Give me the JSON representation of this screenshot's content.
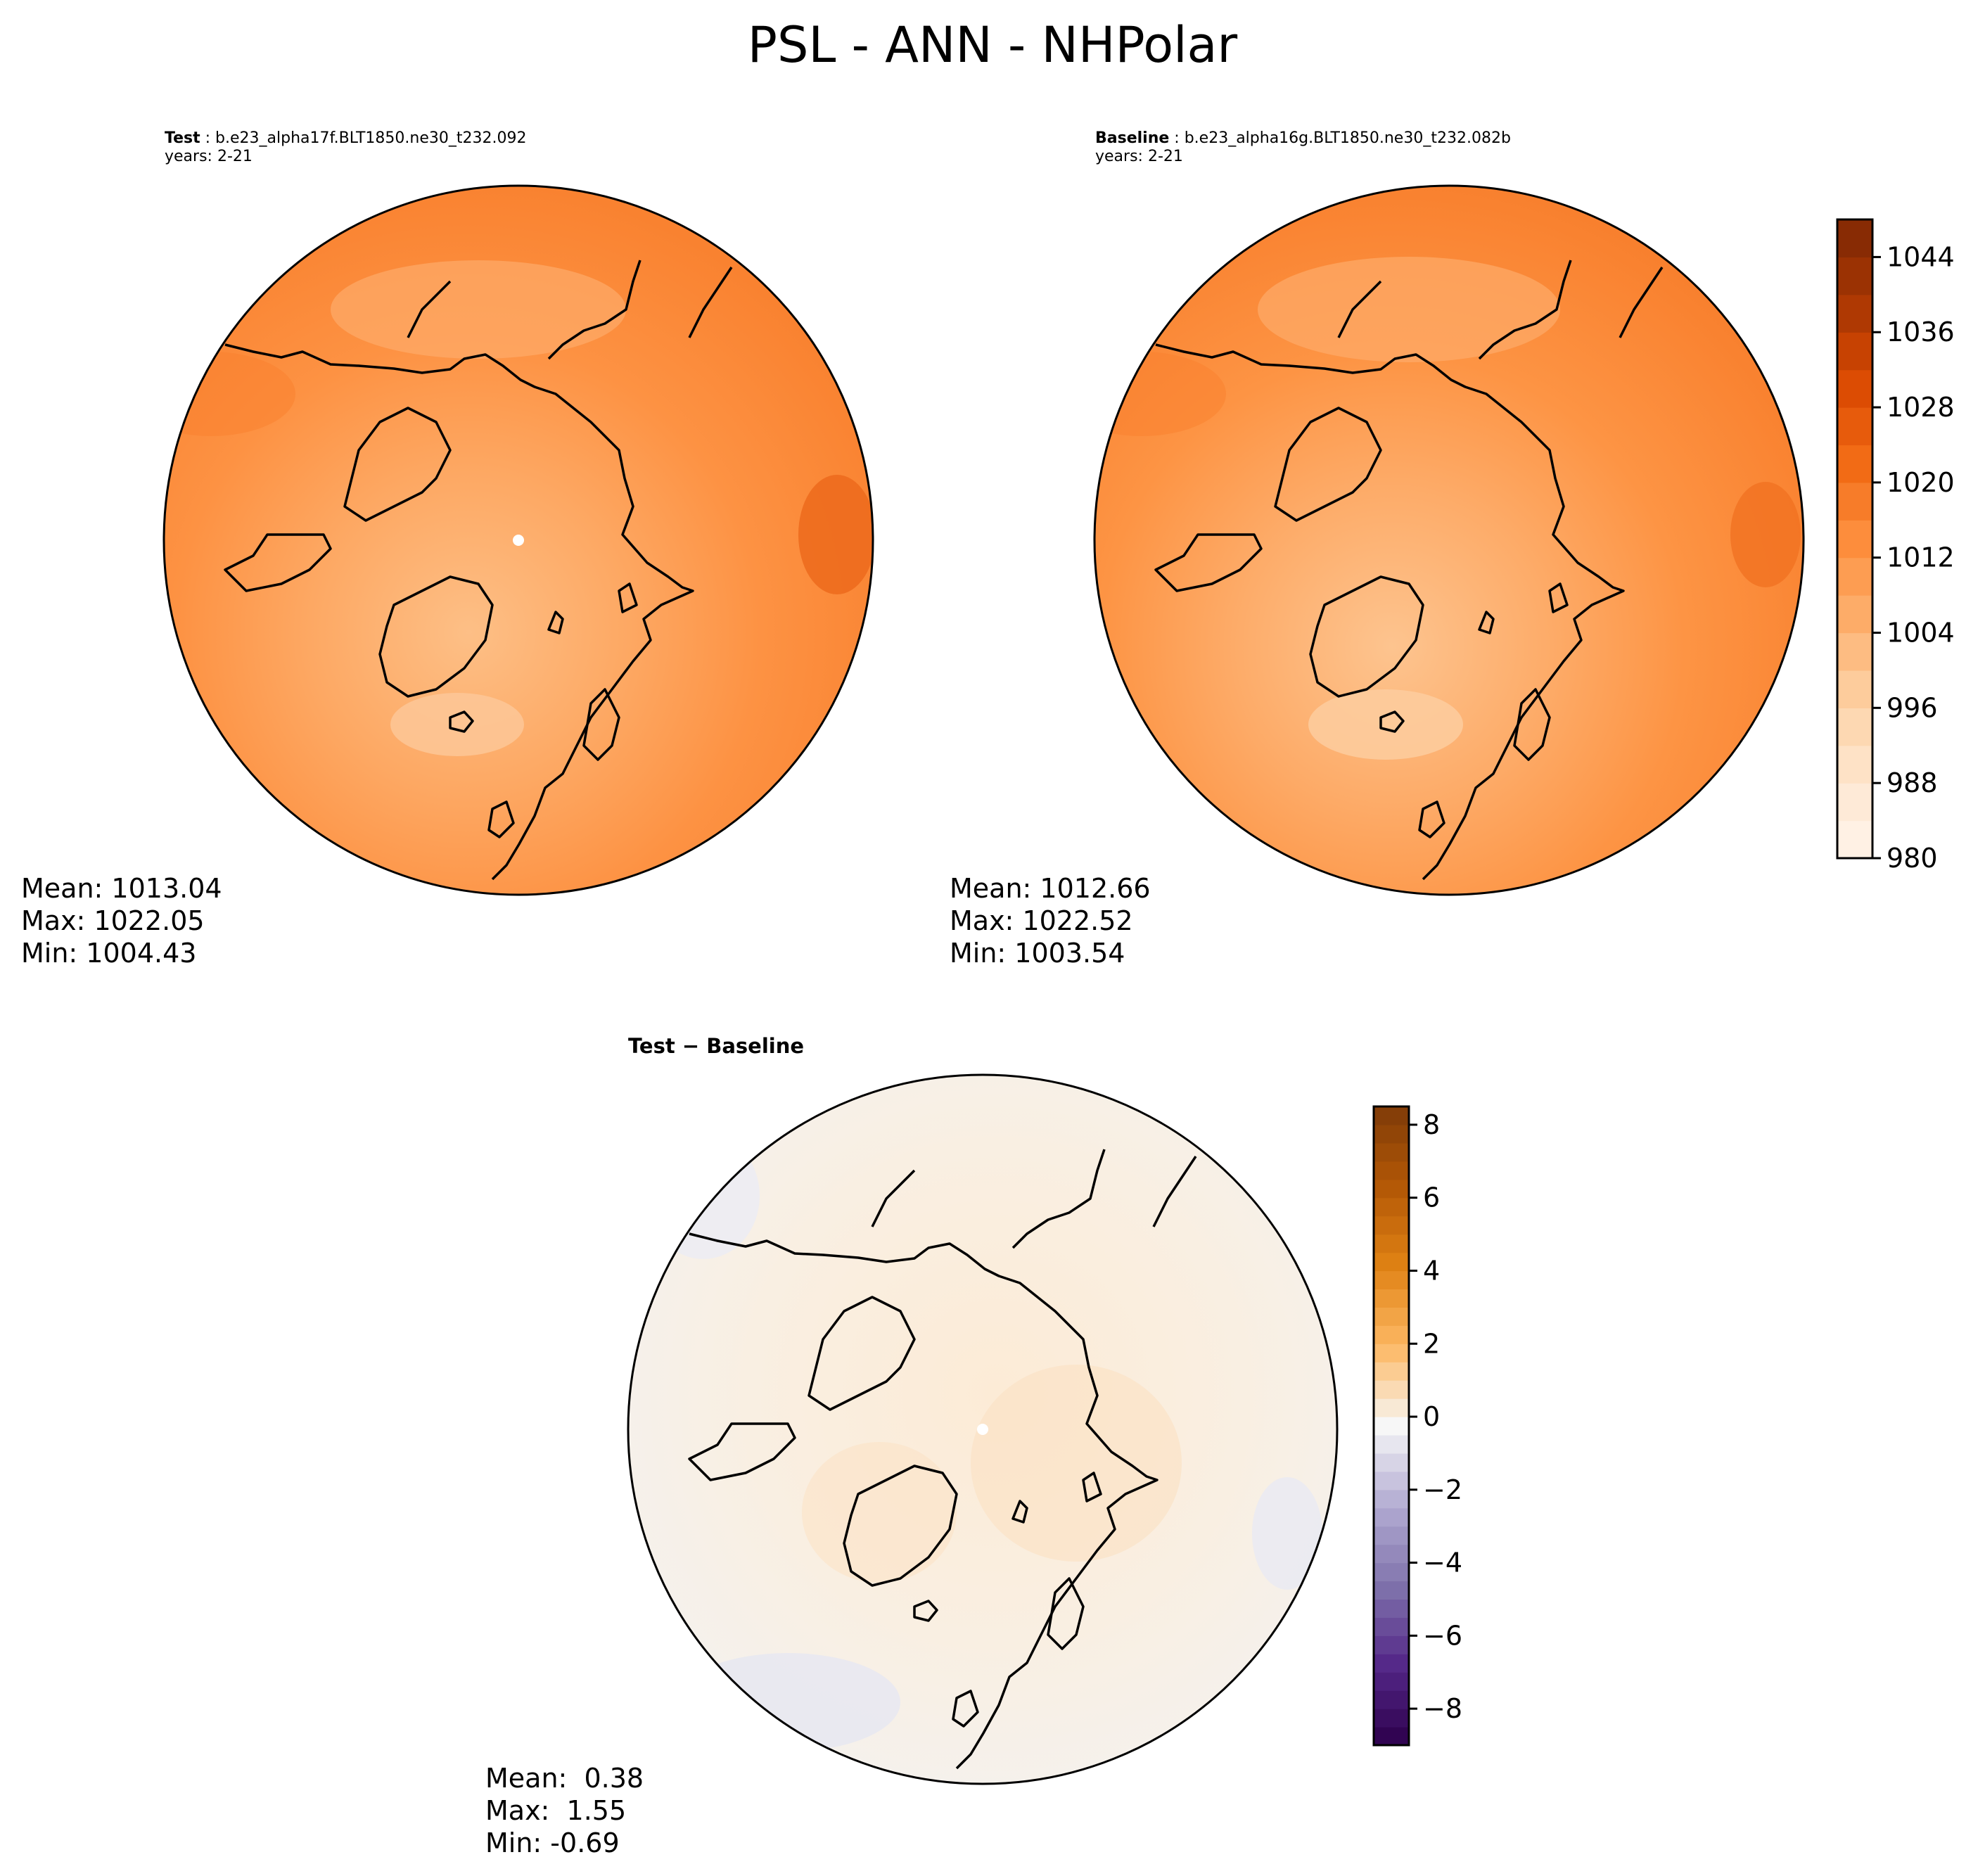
{
  "title": "PSL - ANN - NHPolar",
  "panels": {
    "test": {
      "label": "Test",
      "case": "b.e23_alpha17f.BLT1850.ne30_t232.092",
      "years": "years: 2-21",
      "stats": {
        "mean": "Mean: 1013.04",
        "max": "Max: 1022.05",
        "min": "Min: 1004.43"
      }
    },
    "baseline": {
      "label": "Baseline",
      "case": "b.e23_alpha16g.BLT1850.ne30_t232.082b",
      "years": "years: 2-21",
      "stats": {
        "mean": "Mean: 1012.66",
        "max": "Max: 1022.52",
        "min": "Min: 1003.54"
      }
    },
    "diff": {
      "title": "Test − Baseline",
      "stats": {
        "mean": "Mean:  0.38",
        "max": "Max:  1.55",
        "min": "Min: -0.69"
      }
    }
  },
  "chart_data": [
    {
      "type": "heatmap",
      "projection": "north polar stereographic",
      "colormap": "Oranges",
      "colorbar": {
        "range": [
          980,
          1048
        ],
        "ticks": [
          980,
          988,
          996,
          1004,
          1012,
          1020,
          1028,
          1036,
          1044
        ],
        "tick_labels": [
          "980",
          "988",
          "996",
          "1004",
          "1012",
          "1020",
          "1028",
          "1036",
          "1044"
        ]
      },
      "fields": {
        "test": {
          "mean": 1013.04,
          "max": 1022.05,
          "min": 1004.43
        },
        "baseline": {
          "mean": 1012.66,
          "max": 1022.52,
          "min": 1003.54
        }
      }
    },
    {
      "type": "heatmap",
      "projection": "north polar stereographic",
      "colormap": "PuOr_r",
      "colorbar": {
        "range": [
          -9,
          8.5
        ],
        "ticks": [
          -8,
          -6,
          -4,
          -2,
          0,
          2,
          4,
          6,
          8
        ],
        "tick_labels": [
          "−8",
          "−6",
          "−4",
          "−2",
          "0",
          "2",
          "4",
          "6",
          "8"
        ]
      },
      "field": {
        "mean": 0.38,
        "max": 1.55,
        "min": -0.69
      }
    }
  ]
}
